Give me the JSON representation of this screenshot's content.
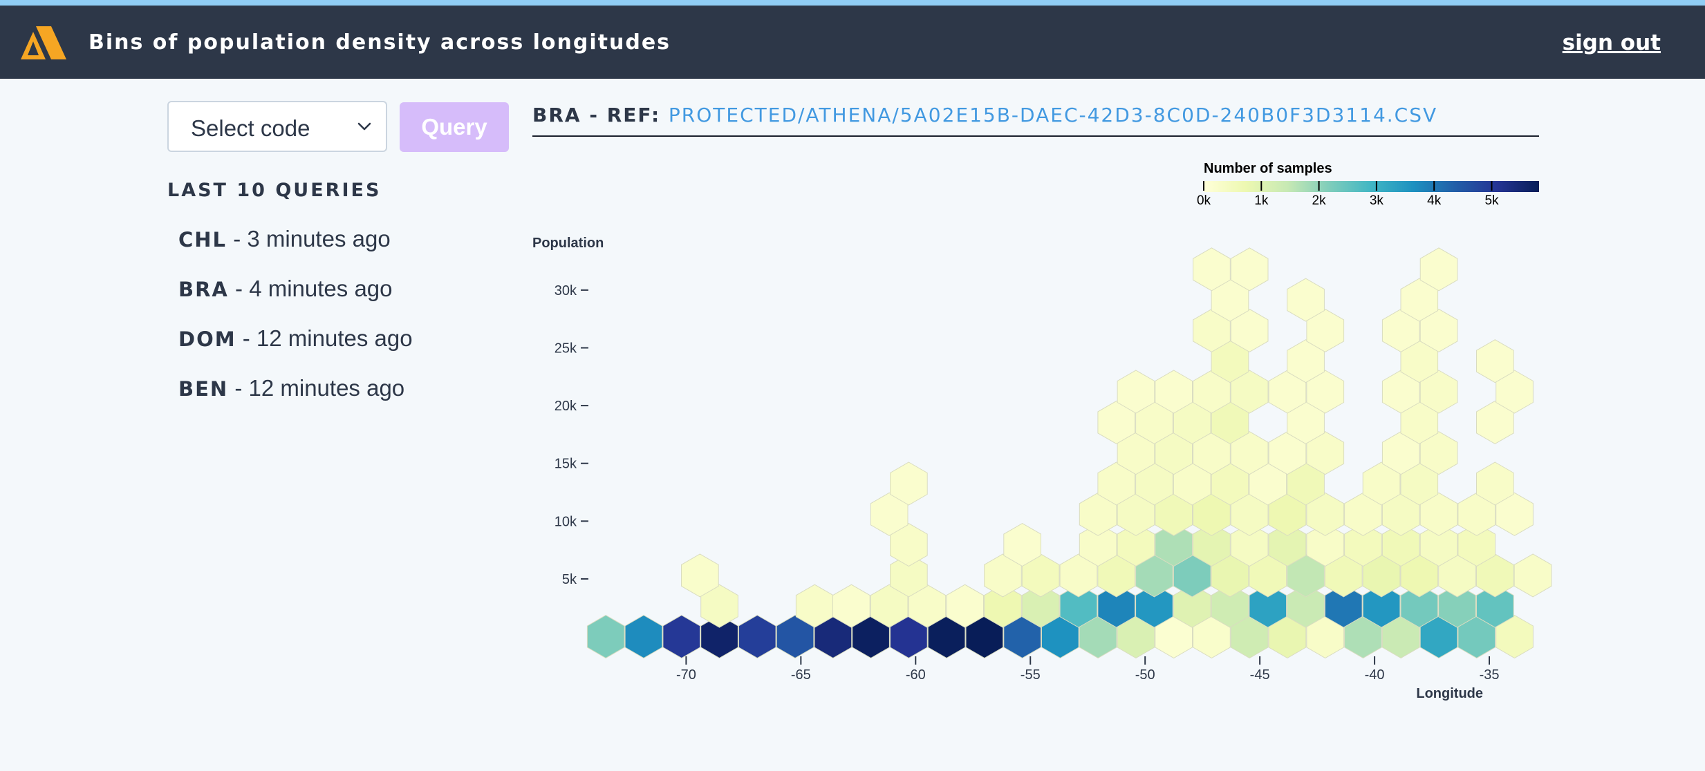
{
  "header": {
    "title": "Bins of population density across longitudes",
    "sign_out": "sign out"
  },
  "controls": {
    "select_value": "Select code",
    "query_label": "Query"
  },
  "recent": {
    "title": "LAST 10 QUERIES",
    "items": [
      {
        "code": "CHL",
        "time": " - 3 minutes ago"
      },
      {
        "code": "BRA",
        "time": " - 4 minutes ago"
      },
      {
        "code": "DOM",
        "time": " - 12 minutes ago"
      },
      {
        "code": "BEN",
        "time": " - 12 minutes ago"
      }
    ]
  },
  "reference": {
    "prefix": "BRA - REF: ",
    "path": "PROTECTED/ATHENA/5A02E15B-DAEC-42D3-8C0D-240B0F3D3114.CSV"
  },
  "colors": {
    "header_bg": "#2d3748",
    "accent_stripe": "#90cdf4",
    "query_button": "#d6bcfa",
    "link": "#4299e1",
    "logo": "#f6a623"
  },
  "chart_data": {
    "type": "heatmap",
    "subtype": "hexbin",
    "xlabel": "Longitude",
    "ylabel": "Population",
    "x_ticks": [
      -70,
      -65,
      -60,
      -55,
      -50,
      -45,
      -40,
      -35
    ],
    "y_ticks": [
      5000,
      10000,
      15000,
      20000,
      25000,
      30000
    ],
    "y_tick_labels": [
      "5k",
      "10k",
      "15k",
      "20k",
      "25k",
      "30k"
    ],
    "xlim": [
      -74.2,
      -32.5
    ],
    "ylim": [
      -2300,
      34000
    ],
    "legend": {
      "title": "Number of samples",
      "placement": "top-right",
      "ticks": [
        "0k",
        "1k",
        "2k",
        "3k",
        "4k",
        "5k"
      ],
      "max": 5800
    },
    "bins": [
      {
        "lon": -73.5,
        "pop": 0,
        "count": 2200
      },
      {
        "lon": -71.85,
        "pop": 0,
        "count": 3700
      },
      {
        "lon": -70.2,
        "pop": 0,
        "count": 5000
      },
      {
        "lon": -68.55,
        "pop": 0,
        "count": 5600
      },
      {
        "lon": -66.9,
        "pop": 0,
        "count": 4900
      },
      {
        "lon": -65.25,
        "pop": 0,
        "count": 4500
      },
      {
        "lon": -63.6,
        "pop": 0,
        "count": 5400
      },
      {
        "lon": -61.95,
        "pop": 0,
        "count": 5700
      },
      {
        "lon": -60.3,
        "pop": 0,
        "count": 5100
      },
      {
        "lon": -58.65,
        "pop": 0,
        "count": 5750
      },
      {
        "lon": -57.0,
        "pop": 0,
        "count": 5800
      },
      {
        "lon": -55.35,
        "pop": 0,
        "count": 4300
      },
      {
        "lon": -53.7,
        "pop": 0,
        "count": 3600
      },
      {
        "lon": -52.05,
        "pop": 0,
        "count": 1800
      },
      {
        "lon": -50.4,
        "pop": 0,
        "count": 1100
      },
      {
        "lon": -48.75,
        "pop": 0,
        "count": 150
      },
      {
        "lon": -47.1,
        "pop": 0,
        "count": 250
      },
      {
        "lon": -45.45,
        "pop": 0,
        "count": 1300
      },
      {
        "lon": -43.8,
        "pop": 0,
        "count": 800
      },
      {
        "lon": -42.15,
        "pop": 0,
        "count": 300
      },
      {
        "lon": -40.5,
        "pop": 0,
        "count": 1700
      },
      {
        "lon": -38.85,
        "pop": 0,
        "count": 1400
      },
      {
        "lon": -37.2,
        "pop": 0,
        "count": 3200
      },
      {
        "lon": -35.55,
        "pop": 0,
        "count": 2300
      },
      {
        "lon": -33.9,
        "pop": 0,
        "count": 500
      },
      {
        "lon": -68.55,
        "pop": 2650,
        "count": 400
      },
      {
        "lon": -64.4,
        "pop": 2650,
        "count": 300
      },
      {
        "lon": -62.8,
        "pop": 2650,
        "count": 200
      },
      {
        "lon": -61.15,
        "pop": 2650,
        "count": 400
      },
      {
        "lon": -59.5,
        "pop": 2650,
        "count": 300
      },
      {
        "lon": -57.85,
        "pop": 2650,
        "count": 200
      },
      {
        "lon": -56.2,
        "pop": 2650,
        "count": 700
      },
      {
        "lon": -54.55,
        "pop": 2650,
        "count": 1100
      },
      {
        "lon": -52.9,
        "pop": 2650,
        "count": 2700
      },
      {
        "lon": -51.25,
        "pop": 2650,
        "count": 3800
      },
      {
        "lon": -49.6,
        "pop": 2650,
        "count": 3500
      },
      {
        "lon": -47.95,
        "pop": 2650,
        "count": 1000
      },
      {
        "lon": -46.3,
        "pop": 2650,
        "count": 1300
      },
      {
        "lon": -44.65,
        "pop": 2650,
        "count": 3300
      },
      {
        "lon": -43.0,
        "pop": 2650,
        "count": 1400
      },
      {
        "lon": -41.35,
        "pop": 2650,
        "count": 4000
      },
      {
        "lon": -39.7,
        "pop": 2650,
        "count": 3500
      },
      {
        "lon": -38.05,
        "pop": 2650,
        "count": 2300
      },
      {
        "lon": -36.4,
        "pop": 2650,
        "count": 2100
      },
      {
        "lon": -34.75,
        "pop": 2650,
        "count": 2500
      },
      {
        "lon": -69.4,
        "pop": 5300,
        "count": 250
      },
      {
        "lon": -60.3,
        "pop": 5300,
        "count": 400
      },
      {
        "lon": -56.2,
        "pop": 5300,
        "count": 300
      },
      {
        "lon": -54.55,
        "pop": 5300,
        "count": 500
      },
      {
        "lon": -52.9,
        "pop": 5300,
        "count": 300
      },
      {
        "lon": -51.25,
        "pop": 5300,
        "count": 600
      },
      {
        "lon": -49.6,
        "pop": 5300,
        "count": 1800
      },
      {
        "lon": -47.95,
        "pop": 5300,
        "count": 2200
      },
      {
        "lon": -46.3,
        "pop": 5300,
        "count": 800
      },
      {
        "lon": -44.65,
        "pop": 5300,
        "count": 600
      },
      {
        "lon": -43.0,
        "pop": 5300,
        "count": 1500
      },
      {
        "lon": -41.35,
        "pop": 5300,
        "count": 600
      },
      {
        "lon": -39.7,
        "pop": 5300,
        "count": 800
      },
      {
        "lon": -38.05,
        "pop": 5300,
        "count": 700
      },
      {
        "lon": -36.4,
        "pop": 5300,
        "count": 400
      },
      {
        "lon": -34.75,
        "pop": 5300,
        "count": 600
      },
      {
        "lon": -33.1,
        "pop": 5300,
        "count": 300
      },
      {
        "lon": -60.3,
        "pop": 7950,
        "count": 300
      },
      {
        "lon": -55.35,
        "pop": 7950,
        "count": 200
      },
      {
        "lon": -52.05,
        "pop": 7950,
        "count": 300
      },
      {
        "lon": -50.4,
        "pop": 7950,
        "count": 500
      },
      {
        "lon": -48.75,
        "pop": 7950,
        "count": 1700
      },
      {
        "lon": -47.1,
        "pop": 7950,
        "count": 900
      },
      {
        "lon": -45.45,
        "pop": 7950,
        "count": 400
      },
      {
        "lon": -43.8,
        "pop": 7950,
        "count": 900
      },
      {
        "lon": -42.15,
        "pop": 7950,
        "count": 300
      },
      {
        "lon": -40.5,
        "pop": 7950,
        "count": 500
      },
      {
        "lon": -38.85,
        "pop": 7950,
        "count": 600
      },
      {
        "lon": -37.2,
        "pop": 7950,
        "count": 400
      },
      {
        "lon": -35.55,
        "pop": 7950,
        "count": 500
      },
      {
        "lon": -61.15,
        "pop": 10600,
        "count": 200
      },
      {
        "lon": -52.05,
        "pop": 10600,
        "count": 300
      },
      {
        "lon": -50.4,
        "pop": 10600,
        "count": 400
      },
      {
        "lon": -48.75,
        "pop": 10600,
        "count": 600
      },
      {
        "lon": -47.1,
        "pop": 10600,
        "count": 700
      },
      {
        "lon": -45.45,
        "pop": 10600,
        "count": 400
      },
      {
        "lon": -43.8,
        "pop": 10600,
        "count": 700
      },
      {
        "lon": -42.15,
        "pop": 10600,
        "count": 400
      },
      {
        "lon": -40.5,
        "pop": 10600,
        "count": 300
      },
      {
        "lon": -38.85,
        "pop": 10600,
        "count": 400
      },
      {
        "lon": -37.2,
        "pop": 10600,
        "count": 300
      },
      {
        "lon": -35.55,
        "pop": 10600,
        "count": 300
      },
      {
        "lon": -33.9,
        "pop": 10600,
        "count": 200
      },
      {
        "lon": -60.3,
        "pop": 13250,
        "count": 200
      },
      {
        "lon": -51.25,
        "pop": 13250,
        "count": 300
      },
      {
        "lon": -49.6,
        "pop": 13250,
        "count": 400
      },
      {
        "lon": -47.95,
        "pop": 13250,
        "count": 300
      },
      {
        "lon": -46.3,
        "pop": 13250,
        "count": 500
      },
      {
        "lon": -44.65,
        "pop": 13250,
        "count": 200
      },
      {
        "lon": -43.0,
        "pop": 13250,
        "count": 600
      },
      {
        "lon": -39.7,
        "pop": 13250,
        "count": 300
      },
      {
        "lon": -38.05,
        "pop": 13250,
        "count": 400
      },
      {
        "lon": -34.75,
        "pop": 13250,
        "count": 300
      },
      {
        "lon": -50.4,
        "pop": 15900,
        "count": 300
      },
      {
        "lon": -48.75,
        "pop": 15900,
        "count": 400
      },
      {
        "lon": -47.1,
        "pop": 15900,
        "count": 300
      },
      {
        "lon": -45.45,
        "pop": 15900,
        "count": 300
      },
      {
        "lon": -43.8,
        "pop": 15900,
        "count": 200
      },
      {
        "lon": -42.15,
        "pop": 15900,
        "count": 300
      },
      {
        "lon": -38.85,
        "pop": 15900,
        "count": 200
      },
      {
        "lon": -37.2,
        "pop": 15900,
        "count": 300
      },
      {
        "lon": -51.25,
        "pop": 18550,
        "count": 200
      },
      {
        "lon": -49.6,
        "pop": 18550,
        "count": 300
      },
      {
        "lon": -47.95,
        "pop": 18550,
        "count": 400
      },
      {
        "lon": -46.3,
        "pop": 18550,
        "count": 600
      },
      {
        "lon": -43.0,
        "pop": 18550,
        "count": 200
      },
      {
        "lon": -38.05,
        "pop": 18550,
        "count": 300
      },
      {
        "lon": -34.75,
        "pop": 18550,
        "count": 200
      },
      {
        "lon": -50.4,
        "pop": 21200,
        "count": 200
      },
      {
        "lon": -48.75,
        "pop": 21200,
        "count": 200
      },
      {
        "lon": -47.1,
        "pop": 21200,
        "count": 300
      },
      {
        "lon": -45.45,
        "pop": 21200,
        "count": 400
      },
      {
        "lon": -43.8,
        "pop": 21200,
        "count": 200
      },
      {
        "lon": -42.15,
        "pop": 21200,
        "count": 200
      },
      {
        "lon": -38.85,
        "pop": 21200,
        "count": 200
      },
      {
        "lon": -37.2,
        "pop": 21200,
        "count": 300
      },
      {
        "lon": -33.9,
        "pop": 21200,
        "count": 200
      },
      {
        "lon": -46.3,
        "pop": 23850,
        "count": 500
      },
      {
        "lon": -43.0,
        "pop": 23850,
        "count": 200
      },
      {
        "lon": -38.05,
        "pop": 23850,
        "count": 300
      },
      {
        "lon": -34.75,
        "pop": 23850,
        "count": 200
      },
      {
        "lon": -47.1,
        "pop": 26500,
        "count": 300
      },
      {
        "lon": -45.45,
        "pop": 26500,
        "count": 200
      },
      {
        "lon": -42.15,
        "pop": 26500,
        "count": 200
      },
      {
        "lon": -38.85,
        "pop": 26500,
        "count": 200
      },
      {
        "lon": -37.2,
        "pop": 26500,
        "count": 200
      },
      {
        "lon": -46.3,
        "pop": 29150,
        "count": 200
      },
      {
        "lon": -43.0,
        "pop": 29150,
        "count": 200
      },
      {
        "lon": -38.05,
        "pop": 29150,
        "count": 200
      },
      {
        "lon": -47.1,
        "pop": 31800,
        "count": 200
      },
      {
        "lon": -45.45,
        "pop": 31800,
        "count": 200
      },
      {
        "lon": -37.2,
        "pop": 31800,
        "count": 200
      }
    ]
  }
}
